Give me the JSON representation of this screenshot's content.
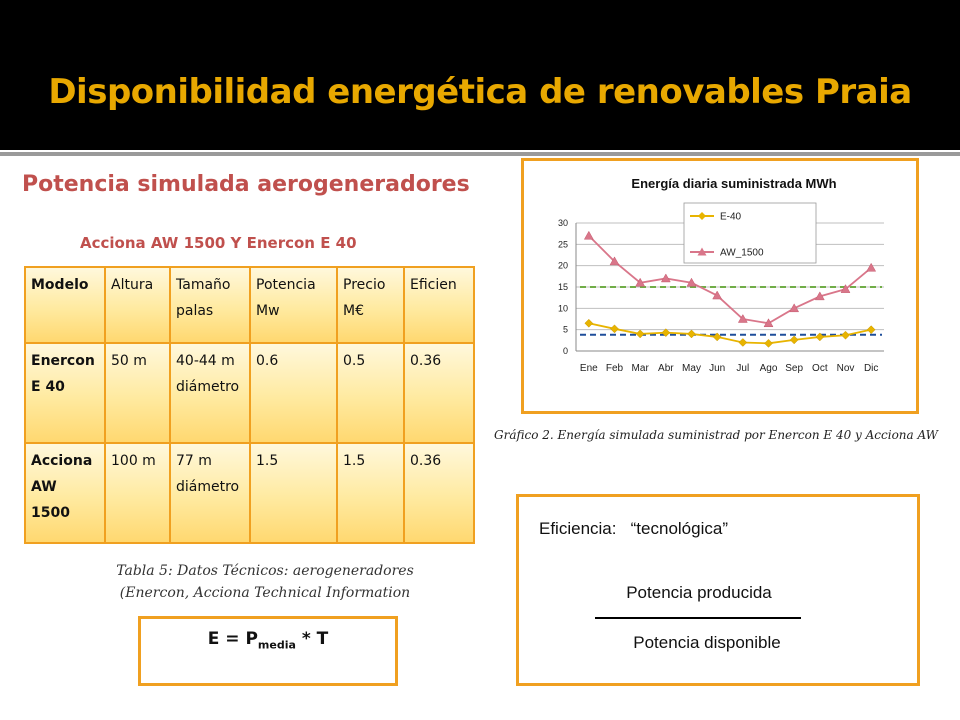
{
  "slide": {
    "title": "Disponibilidad energética de renovables Praia",
    "subtitle": "Potencia simulada aerogeneradores",
    "colors": {
      "title": "#e8a800",
      "accent_red": "#c0504d",
      "border_orange": "#f0a020"
    }
  },
  "table": {
    "title": "Acciona AW 1500 Y Enercon E 40",
    "headers": [
      "Modelo",
      "Altura",
      "Tamaño palas",
      "Potencia Mw",
      "Precio M€",
      "Eficien"
    ],
    "rows": [
      [
        "Enercon E 40",
        "50 m",
        "40-44 m diámetro",
        "0.6",
        "0.5",
        "0.36"
      ],
      [
        "Acciona AW 1500",
        "100 m",
        "77 m diámetro",
        "1.5",
        "1.5",
        "0.36"
      ]
    ],
    "caption_line1": "Tabla 5: Datos Técnicos: aerogeneradores",
    "caption_line2": "(Enercon, Acciona Technical Information"
  },
  "formula": {
    "lhs": "E = P",
    "sub": "media",
    "rhs": " * T"
  },
  "chart_data": {
    "type": "line",
    "title": "Energía diaria suministrada MWh",
    "categories": [
      "Ene",
      "Feb",
      "Mar",
      "Abr",
      "May",
      "Jun",
      "Jul",
      "Ago",
      "Sep",
      "Oct",
      "Nov",
      "Dic"
    ],
    "yticks": [
      0,
      5,
      10,
      15,
      20,
      25,
      30
    ],
    "ylim": [
      0,
      30
    ],
    "series": [
      {
        "name": "E-40",
        "color": "#e8b400",
        "marker": "diamond",
        "values": [
          6.5,
          5.2,
          4,
          4.3,
          4,
          3.3,
          2,
          1.8,
          2.6,
          3.3,
          3.7,
          5
        ],
        "avg": 3.8,
        "avg_color": "#1f4e9a"
      },
      {
        "name": "AW_1500",
        "color": "#d9768a",
        "marker": "triangle",
        "values": [
          27,
          21,
          16,
          17,
          16,
          13,
          7.5,
          6.5,
          10,
          12.8,
          14.5,
          19.5
        ],
        "avg": 15,
        "avg_color": "#70ad47"
      }
    ],
    "legend": "top-center",
    "grid": true,
    "caption": "Gráfico 2. Energía simulada suministrad por Enercon E 40 y Acciona AW"
  },
  "efficiency": {
    "title": "Eficiencia:   “tecnológica”",
    "numerator": "Potencia producida",
    "denominator": "Potencia disponible"
  }
}
